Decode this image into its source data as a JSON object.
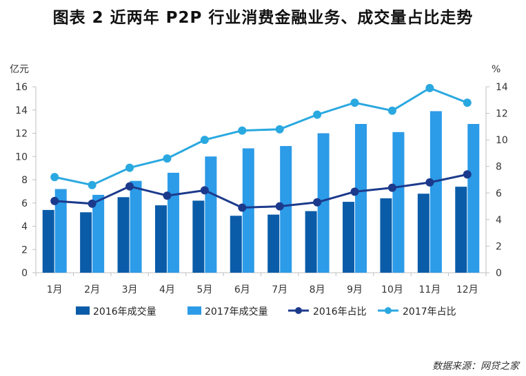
{
  "title": "图表 2 近两年 P2P 行业消费金融业务、成交量占比走势",
  "source": "数据来源：网贷之家",
  "chart_data": {
    "type": "bar",
    "categories": [
      "1月",
      "2月",
      "3月",
      "4月",
      "5月",
      "6月",
      "7月",
      "8月",
      "9月",
      "10月",
      "11月",
      "12月"
    ],
    "y_left": {
      "unit": "亿元",
      "range": [
        0,
        16
      ],
      "ticks": [
        "0",
        "2",
        "4",
        "6",
        "8",
        "10",
        "12",
        "14",
        "16"
      ]
    },
    "y_right": {
      "unit": "%",
      "range": [
        0,
        14
      ],
      "ticks": [
        "0",
        "2",
        "4",
        "6",
        "8",
        "10",
        "12",
        "14"
      ]
    },
    "grid": false,
    "legend_position": "bottom",
    "series": [
      {
        "name": "2016年成交量",
        "type": "bar",
        "axis": "left",
        "color": "#0b5ca8",
        "values": [
          5.4,
          5.2,
          6.5,
          5.8,
          6.2,
          4.9,
          5.0,
          5.3,
          6.1,
          6.4,
          6.8,
          7.4
        ]
      },
      {
        "name": "2017年成交量",
        "type": "bar",
        "axis": "left",
        "color": "#2c9be8",
        "values": [
          7.2,
          6.7,
          7.9,
          8.6,
          10.0,
          10.7,
          10.9,
          12.0,
          12.8,
          12.1,
          13.9,
          12.8
        ]
      },
      {
        "name": "2016年占比",
        "type": "line",
        "axis": "right",
        "color": "#1c3a8c",
        "values": [
          5.4,
          5.2,
          6.5,
          5.8,
          6.2,
          4.9,
          5.0,
          5.3,
          6.1,
          6.4,
          6.8,
          7.4
        ]
      },
      {
        "name": "2017年占比",
        "type": "line",
        "axis": "right",
        "color": "#2aa8e0",
        "values": [
          7.2,
          6.6,
          7.9,
          8.6,
          10.0,
          10.7,
          10.8,
          11.9,
          12.8,
          12.2,
          13.9,
          12.8
        ]
      }
    ]
  }
}
